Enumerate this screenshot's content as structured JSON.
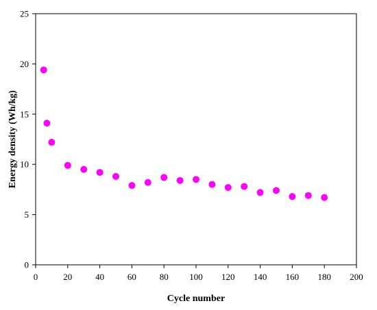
{
  "chart_data": {
    "type": "scatter",
    "title": "",
    "xlabel": "Cycle number",
    "ylabel": "Energy density (Wh/kg)",
    "xlim": [
      0,
      200
    ],
    "ylim": [
      0,
      25
    ],
    "xticks": [
      0,
      20,
      40,
      60,
      80,
      100,
      120,
      140,
      160,
      180,
      200
    ],
    "yticks": [
      0,
      5,
      10,
      15,
      20,
      25
    ],
    "grid": false,
    "legend": "none",
    "marker_color": "#ff00ff",
    "series": [
      {
        "points": [
          {
            "x": 5,
            "y": 19.4
          },
          {
            "x": 7,
            "y": 14.1
          },
          {
            "x": 10,
            "y": 12.2
          },
          {
            "x": 20,
            "y": 9.9
          },
          {
            "x": 30,
            "y": 9.5
          },
          {
            "x": 40,
            "y": 9.2
          },
          {
            "x": 50,
            "y": 8.8
          },
          {
            "x": 60,
            "y": 7.9
          },
          {
            "x": 70,
            "y": 8.2
          },
          {
            "x": 80,
            "y": 8.7
          },
          {
            "x": 90,
            "y": 8.4
          },
          {
            "x": 100,
            "y": 8.5
          },
          {
            "x": 110,
            "y": 8.0
          },
          {
            "x": 120,
            "y": 7.7
          },
          {
            "x": 130,
            "y": 7.8
          },
          {
            "x": 140,
            "y": 7.2
          },
          {
            "x": 150,
            "y": 7.4
          },
          {
            "x": 160,
            "y": 6.8
          },
          {
            "x": 170,
            "y": 6.9
          },
          {
            "x": 180,
            "y": 6.7
          }
        ]
      }
    ]
  }
}
